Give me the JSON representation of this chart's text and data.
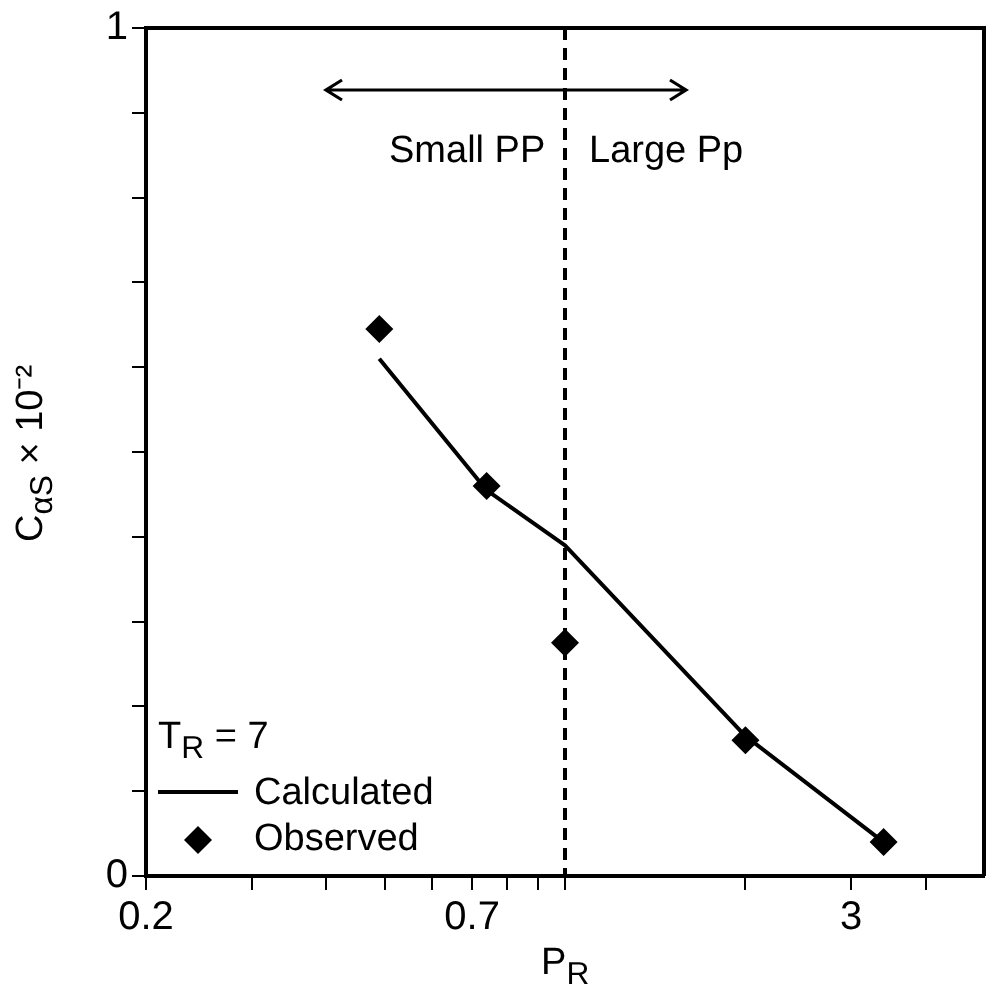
{
  "chart_data": {
    "type": "scatter",
    "xlabel": "P$_{R}$",
    "ylabel": "C$_{αS}$ × 10⁻²",
    "legend_title": "T$_{R}$ = 7",
    "log": "x",
    "grid": false,
    "legend": "bottom left",
    "xlim": [
      0.2,
      5
    ],
    "xticks": [
      0.2,
      {
        "value": 0.3,
        "label": null
      },
      {
        "value": 0.4,
        "label": null
      },
      {
        "value": 0.5,
        "label": null
      },
      {
        "value": 0.6,
        "label": null
      },
      0.7,
      {
        "value": 0.8,
        "label": null
      },
      {
        "value": 0.9,
        "label": null
      },
      {
        "value": 1,
        "label": null
      },
      {
        "value": 2,
        "label": null
      },
      3,
      {
        "value": 4,
        "label": null
      }
    ],
    "ylim": [
      0,
      1
    ],
    "yticks": [
      0,
      {
        "value": 0.1,
        "label": null
      },
      {
        "value": 0.2,
        "label": null
      },
      {
        "value": 0.3,
        "label": null
      },
      {
        "value": 0.4,
        "label": null
      },
      {
        "value": 0.5,
        "label": null
      },
      {
        "value": 0.6,
        "label": null
      },
      {
        "value": 0.7,
        "label": null
      },
      {
        "value": 0.8,
        "label": null
      },
      {
        "value": 0.9,
        "label": null
      },
      1
    ],
    "series": [
      {
        "name": "Calculated",
        "type": "line",
        "color": "#000000",
        "marker": "none",
        "line_style": "solid",
        "x": [
          0.49,
          0.74,
          1.0,
          2.0,
          3.4
        ],
        "values": [
          0.61,
          0.455,
          0.39,
          0.165,
          0.04
        ]
      },
      {
        "name": "Observed",
        "type": "scatter",
        "color": "#000000",
        "marker": "diamond",
        "x": [
          0.49,
          0.74,
          1.0,
          2.0,
          3.4
        ],
        "values": [
          0.645,
          0.46,
          0.275,
          0.16,
          0.04
        ]
      }
    ],
    "ref_lines": [
      {
        "axis": "x",
        "value": 1,
        "line_style": "dashed",
        "color": "#000000"
      }
    ],
    "annotations": [
      "Small PP",
      "Large Pp"
    ]
  }
}
